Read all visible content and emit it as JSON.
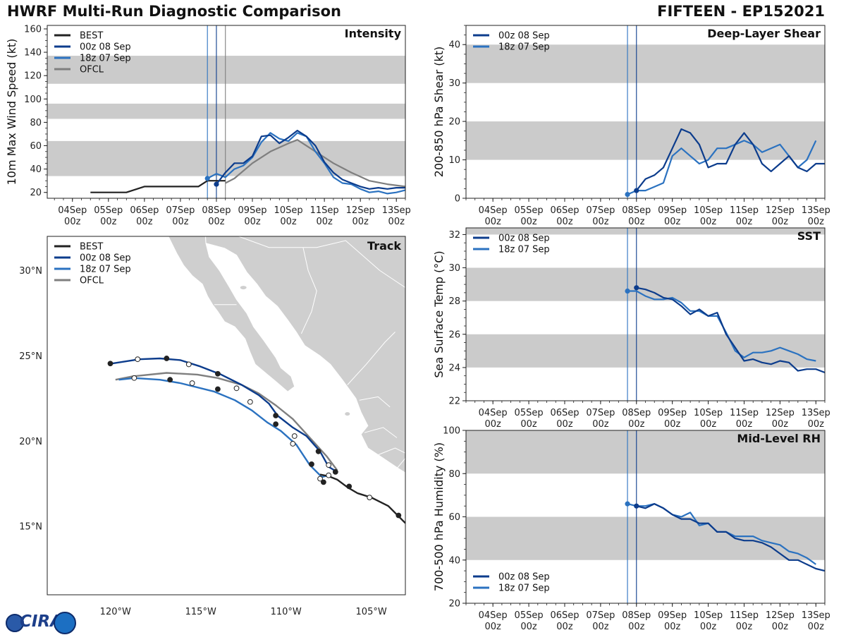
{
  "header": {
    "title_left": "HWRF Multi-Run Diagnostic Comparison",
    "title_right": "FIFTEEN - EP152021"
  },
  "colors": {
    "best": "#222222",
    "run_00z": "#0c3c8c",
    "run_18z": "#2b72c0",
    "ofcl": "#7f7f7f",
    "band": "#cbcbcb",
    "land": "#cfcfcf"
  },
  "logo": {
    "text": "CIRA"
  },
  "time_axis": {
    "labels": [
      "04Sep",
      "05Sep",
      "06Sep",
      "07Sep",
      "08Sep",
      "09Sep",
      "10Sep",
      "11Sep",
      "12Sep",
      "13Sep"
    ],
    "sublabel": "00z"
  },
  "chart_data": [
    {
      "id": "intensity",
      "type": "line",
      "panel_title": "Intensity",
      "ylabel": "10m Max Wind Speed (kt)",
      "x_unit": "days since 04Sep 00z",
      "xlim": [
        -0.7,
        9.25
      ],
      "ylim": [
        15,
        163
      ],
      "yticks": [
        20,
        40,
        60,
        80,
        100,
        120,
        140,
        160
      ],
      "bands": [
        [
          34,
          64
        ],
        [
          83,
          96
        ],
        [
          113,
          137
        ]
      ],
      "vlines": [
        {
          "x": 3.75,
          "series": "18z 07 Sep"
        },
        {
          "x": 4.0,
          "series": "00z 08 Sep"
        },
        {
          "x": 4.25,
          "series": "OFCL"
        }
      ],
      "legend": [
        "BEST",
        "00z 08 Sep",
        "18z 07 Sep",
        "OFCL"
      ],
      "legend_position": "top-left",
      "series": [
        {
          "name": "BEST",
          "color_key": "best",
          "x": [
            0.5,
            1.0,
            1.5,
            2.0,
            2.5,
            3.0,
            3.5,
            3.75,
            4.0,
            4.25
          ],
          "y": [
            20,
            20,
            20,
            25,
            25,
            25,
            25,
            30,
            30,
            30
          ]
        },
        {
          "name": "OFCL",
          "color_key": "ofcl",
          "x": [
            4.25,
            4.5,
            5.0,
            5.5,
            6.0,
            6.25,
            6.75,
            7.25,
            7.75,
            8.25,
            8.75,
            9.25
          ],
          "y": [
            28,
            32,
            45,
            55,
            62,
            65,
            55,
            45,
            37,
            30,
            27,
            25
          ]
        },
        {
          "name": "18z 07 Sep",
          "color_key": "run_18z",
          "x": [
            3.75,
            4.0,
            4.25,
            4.5,
            4.75,
            5.0,
            5.25,
            5.5,
            5.75,
            6.0,
            6.25,
            6.5,
            6.75,
            7.0,
            7.25,
            7.5,
            7.75,
            8.0,
            8.25,
            8.5,
            8.75,
            9.0,
            9.25
          ],
          "y": [
            32,
            36,
            33,
            40,
            43,
            50,
            63,
            71,
            66,
            64,
            71,
            68,
            55,
            45,
            33,
            28,
            27,
            23,
            20,
            21,
            19,
            20,
            22
          ]
        },
        {
          "name": "00z 08 Sep",
          "color_key": "run_00z",
          "x": [
            4.0,
            4.25,
            4.5,
            4.75,
            5.0,
            5.25,
            5.5,
            5.75,
            6.0,
            6.25,
            6.5,
            6.75,
            7.0,
            7.25,
            7.5,
            7.75,
            8.0,
            8.25,
            8.5,
            8.75,
            9.0,
            9.25
          ],
          "y": [
            27,
            37,
            45,
            45,
            51,
            68,
            69,
            62,
            67,
            73,
            68,
            60,
            46,
            37,
            31,
            28,
            25,
            23,
            24,
            23,
            24,
            24
          ]
        }
      ]
    },
    {
      "id": "shear",
      "type": "line",
      "panel_title": "Deep-Layer Shear",
      "ylabel": "200-850 hPa Shear (kt)",
      "x_unit": "days since 04Sep 00z",
      "xlim": [
        -0.75,
        9.25
      ],
      "ylim": [
        0,
        45
      ],
      "yticks": [
        0,
        10,
        20,
        30,
        40
      ],
      "bands": [
        [
          10,
          20
        ],
        [
          30,
          40
        ]
      ],
      "vlines": [
        {
          "x": 3.75,
          "series": "18z 07 Sep"
        },
        {
          "x": 4.0,
          "series": "00z 08 Sep"
        }
      ],
      "legend": [
        "00z 08 Sep",
        "18z 07 Sep"
      ],
      "legend_position": "top-left",
      "series": [
        {
          "name": "18z 07 Sep",
          "color_key": "run_18z",
          "x": [
            3.75,
            4.0,
            4.25,
            4.5,
            4.75,
            5.0,
            5.25,
            5.5,
            5.75,
            6.0,
            6.25,
            6.5,
            6.75,
            7.0,
            7.25,
            7.5,
            7.75,
            8.0,
            8.25,
            8.5,
            8.75,
            9.0
          ],
          "y": [
            1,
            2,
            2,
            3,
            4,
            11,
            13,
            11,
            9,
            10,
            13,
            13,
            14,
            15,
            14,
            12,
            13,
            14,
            11,
            8,
            10,
            15
          ]
        },
        {
          "name": "00z 08 Sep",
          "color_key": "run_00z",
          "x": [
            4.0,
            4.25,
            4.5,
            4.75,
            5.0,
            5.25,
            5.5,
            5.75,
            6.0,
            6.25,
            6.5,
            6.75,
            7.0,
            7.25,
            7.5,
            7.75,
            8.0,
            8.25,
            8.5,
            8.75,
            9.0,
            9.25
          ],
          "y": [
            2,
            5,
            6,
            8,
            13,
            18,
            17,
            14,
            8,
            9,
            9,
            14,
            17,
            14,
            9,
            7,
            9,
            11,
            8,
            7,
            9,
            9
          ]
        }
      ]
    },
    {
      "id": "sst",
      "type": "line",
      "panel_title": "SST",
      "ylabel": "Sea Surface Temp (°C)",
      "x_unit": "days since 04Sep 00z",
      "xlim": [
        -0.75,
        9.25
      ],
      "ylim": [
        22,
        32.4
      ],
      "yticks": [
        22,
        24,
        26,
        28,
        30,
        32
      ],
      "bands": [
        [
          24,
          26
        ],
        [
          28,
          30
        ],
        [
          32,
          32.4
        ]
      ],
      "vlines": [
        {
          "x": 3.75,
          "series": "18z 07 Sep"
        },
        {
          "x": 4.0,
          "series": "00z 08 Sep"
        }
      ],
      "legend": [
        "00z 08 Sep",
        "18z 07 Sep"
      ],
      "legend_position": "top-left",
      "series": [
        {
          "name": "18z 07 Sep",
          "color_key": "run_18z",
          "x": [
            3.75,
            4.0,
            4.25,
            4.5,
            4.75,
            5.0,
            5.25,
            5.5,
            5.75,
            6.0,
            6.25,
            6.5,
            6.75,
            7.0,
            7.25,
            7.5,
            7.75,
            8.0,
            8.25,
            8.5,
            8.75,
            9.0
          ],
          "y": [
            28.6,
            28.6,
            28.3,
            28.1,
            28.1,
            28.2,
            27.9,
            27.4,
            27.4,
            27.1,
            27.1,
            26.1,
            25.0,
            24.6,
            24.9,
            24.9,
            25.0,
            25.2,
            25.0,
            24.8,
            24.5,
            24.4
          ]
        },
        {
          "name": "00z 08 Sep",
          "color_key": "run_00z",
          "x": [
            4.0,
            4.25,
            4.5,
            4.75,
            5.0,
            5.25,
            5.5,
            5.75,
            6.0,
            6.25,
            6.5,
            6.75,
            7.0,
            7.25,
            7.5,
            7.75,
            8.0,
            8.25,
            8.5,
            8.75,
            9.0,
            9.25
          ],
          "y": [
            28.8,
            28.7,
            28.5,
            28.2,
            28.1,
            27.7,
            27.2,
            27.5,
            27.1,
            27.3,
            26.0,
            25.2,
            24.4,
            24.5,
            24.3,
            24.2,
            24.4,
            24.3,
            23.8,
            23.9,
            23.9,
            23.7
          ]
        }
      ]
    },
    {
      "id": "rh",
      "type": "line",
      "panel_title": "Mid-Level RH",
      "ylabel": "700-500 hPa Humidity (%)",
      "x_unit": "days since 04Sep 00z",
      "xlim": [
        -0.75,
        9.25
      ],
      "ylim": [
        20,
        100
      ],
      "yticks": [
        20,
        40,
        60,
        80,
        100
      ],
      "bands": [
        [
          40,
          60
        ],
        [
          80,
          100
        ]
      ],
      "vlines": [
        {
          "x": 3.75,
          "series": "18z 07 Sep"
        },
        {
          "x": 4.0,
          "series": "00z 08 Sep"
        }
      ],
      "legend": [
        "00z 08 Sep",
        "18z 07 Sep"
      ],
      "legend_position": "bottom-left",
      "series": [
        {
          "name": "18z 07 Sep",
          "color_key": "run_18z",
          "x": [
            3.75,
            4.0,
            4.25,
            4.5,
            4.75,
            5.0,
            5.25,
            5.5,
            5.75,
            6.0,
            6.25,
            6.5,
            6.75,
            7.0,
            7.25,
            7.5,
            7.75,
            8.0,
            8.25,
            8.5,
            8.75,
            9.0
          ],
          "y": [
            66,
            65,
            65,
            66,
            64,
            61,
            60,
            62,
            56,
            57,
            53,
            53,
            51,
            51,
            51,
            49,
            48,
            47,
            44,
            43,
            41,
            38
          ]
        },
        {
          "name": "00z 08 Sep",
          "color_key": "run_00z",
          "x": [
            4.0,
            4.25,
            4.5,
            4.75,
            5.0,
            5.25,
            5.5,
            5.75,
            6.0,
            6.25,
            6.5,
            6.75,
            7.0,
            7.25,
            7.5,
            7.75,
            8.0,
            8.25,
            8.5,
            8.75,
            9.0,
            9.25
          ],
          "y": [
            65,
            64,
            66,
            64,
            61,
            59,
            59,
            57,
            57,
            53,
            53,
            50,
            49,
            49,
            48,
            46,
            43,
            40,
            40,
            38,
            36,
            35
          ]
        }
      ]
    },
    {
      "id": "track",
      "type": "line",
      "panel_title": "Track",
      "x_unit": "degrees longitude",
      "y_unit": "degrees latitude",
      "xlim": [
        -124.0,
        -103.0
      ],
      "ylim": [
        11.0,
        32.0
      ],
      "xticks": [
        -120,
        -115,
        -110,
        -105
      ],
      "xtick_labels": [
        "120°W",
        "115°W",
        "110°W",
        "105°W"
      ],
      "yticks": [
        15,
        20,
        25,
        30
      ],
      "ytick_labels": [
        "15°N",
        "20°N",
        "25°N",
        "30°N"
      ],
      "legend": [
        "BEST",
        "00z 08 Sep",
        "18z 07 Sep",
        "OFCL"
      ],
      "legend_position": "top-left",
      "series": [
        {
          "name": "OFCL",
          "color_key": "ofcl",
          "lon": [
            -107.0,
            -107.6,
            -108.6,
            -109.6,
            -110.6,
            -111.6,
            -112.6,
            -114.0,
            -115.2,
            -117.0,
            -119.0,
            -120.0
          ],
          "lat": [
            18.3,
            19.1,
            20.2,
            21.3,
            22.1,
            22.8,
            23.3,
            23.7,
            23.9,
            24.0,
            23.8,
            23.6
          ]
        },
        {
          "name": "18z 07 Sep",
          "color_key": "run_18z",
          "lon": [
            -107.5,
            -107.9,
            -108.6,
            -109.4,
            -110.3,
            -111.1,
            -112.0,
            -113.0,
            -114.2,
            -116.2,
            -117.4,
            -118.9,
            -119.8
          ],
          "lat": [
            18.0,
            17.9,
            18.6,
            19.8,
            20.6,
            21.1,
            21.8,
            22.4,
            22.9,
            23.4,
            23.6,
            23.7,
            23.6
          ]
        },
        {
          "name": "00z 08 Sep",
          "color_key": "run_00z",
          "lon": [
            -107.0,
            -107.5,
            -108.0,
            -108.8,
            -109.6,
            -110.5,
            -111.0,
            -111.6,
            -112.6,
            -113.8,
            -115.1,
            -116.2,
            -117.4,
            -118.6,
            -120.2
          ],
          "lat": [
            18.2,
            18.5,
            19.4,
            20.3,
            20.8,
            21.5,
            22.2,
            22.7,
            23.3,
            23.9,
            24.4,
            24.75,
            24.85,
            24.8,
            24.55
          ]
        },
        {
          "name": "BEST",
          "color_key": "best",
          "lon": [
            -108.0,
            -107.5,
            -107.0,
            -106.4,
            -105.8,
            -105.0,
            -104.0,
            -103.0
          ],
          "lat": [
            18.05,
            17.95,
            17.75,
            17.3,
            16.95,
            16.7,
            16.2,
            15.2
          ]
        }
      ],
      "markers": [
        {
          "series": "BEST",
          "lon": -106.3,
          "lat": 17.35,
          "fill": "solid"
        },
        {
          "series": "BEST",
          "lon": -105.1,
          "lat": 16.7,
          "fill": "open"
        },
        {
          "series": "BEST",
          "lon": -103.4,
          "lat": 15.65,
          "fill": "solid"
        },
        {
          "series": "00z 08 Sep",
          "lon": -108.1,
          "lat": 19.4,
          "fill": "solid"
        },
        {
          "series": "00z 08 Sep",
          "lon": -109.5,
          "lat": 20.3,
          "fill": "open"
        },
        {
          "series": "00z 08 Sep",
          "lon": -110.6,
          "lat": 21.5,
          "fill": "solid"
        },
        {
          "series": "00z 08 Sep",
          "lon": -112.9,
          "lat": 23.1,
          "fill": "open"
        },
        {
          "series": "00z 08 Sep",
          "lon": -114.0,
          "lat": 23.95,
          "fill": "solid"
        },
        {
          "series": "00z 08 Sep",
          "lon": -115.7,
          "lat": 24.5,
          "fill": "open"
        },
        {
          "series": "00z 08 Sep",
          "lon": -117.0,
          "lat": 24.85,
          "fill": "solid"
        },
        {
          "series": "00z 08 Sep",
          "lon": -118.7,
          "lat": 24.8,
          "fill": "open"
        },
        {
          "series": "00z 08 Sep",
          "lon": -120.3,
          "lat": 24.55,
          "fill": "solid"
        },
        {
          "series": "18z 07 Sep",
          "lon": -107.5,
          "lat": 18.0,
          "fill": "open"
        },
        {
          "series": "18z 07 Sep",
          "lon": -107.8,
          "lat": 17.6,
          "fill": "solid"
        },
        {
          "series": "18z 07 Sep",
          "lon": -108.0,
          "lat": 17.8,
          "fill": "open"
        },
        {
          "series": "18z 07 Sep",
          "lon": -108.5,
          "lat": 18.65,
          "fill": "solid"
        },
        {
          "series": "18z 07 Sep",
          "lon": -109.6,
          "lat": 19.85,
          "fill": "open"
        },
        {
          "series": "18z 07 Sep",
          "lon": -110.6,
          "lat": 21.0,
          "fill": "solid"
        },
        {
          "series": "18z 07 Sep",
          "lon": -112.1,
          "lat": 22.3,
          "fill": "open"
        },
        {
          "series": "18z 07 Sep",
          "lon": -114.0,
          "lat": 23.05,
          "fill": "solid"
        },
        {
          "series": "18z 07 Sep",
          "lon": -115.5,
          "lat": 23.4,
          "fill": "open"
        },
        {
          "series": "18z 07 Sep",
          "lon": -116.8,
          "lat": 23.6,
          "fill": "solid"
        },
        {
          "series": "18z 07 Sep",
          "lon": -118.9,
          "lat": 23.7,
          "fill": "open"
        },
        {
          "series": "OFCL",
          "lon": -107.1,
          "lat": 18.2,
          "fill": "solid"
        },
        {
          "series": "OFCL",
          "lon": -107.5,
          "lat": 18.6,
          "fill": "open"
        }
      ]
    }
  ]
}
